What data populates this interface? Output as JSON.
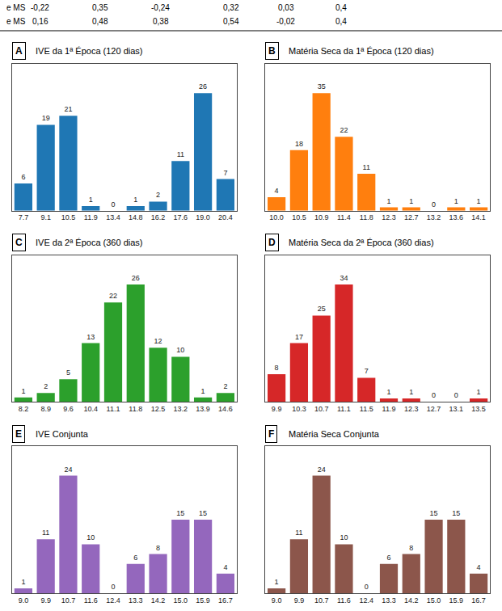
{
  "table": [
    [
      "e MS",
      "-0,22",
      "0,35",
      "-0,24",
      "0,32",
      "0,03",
      "0,4"
    ],
    [
      "e MS",
      "0,16",
      "0,48",
      "0,38",
      "0,54",
      "-0,02",
      "0,4"
    ]
  ],
  "chart_data": [
    {
      "type": "bar",
      "panel_label": "A",
      "title": "IVE da 1ª Época (120 dias)",
      "categories": [
        "7.7",
        "9.1",
        "10.5",
        "11.9",
        "13.4",
        "14.8",
        "16.2",
        "17.6",
        "19.0",
        "20.4"
      ],
      "values": [
        6,
        19,
        21,
        1,
        0,
        1,
        2,
        11,
        26,
        7
      ],
      "ylim": [
        0,
        32.5
      ],
      "tick_labels": "x",
      "data_labels": true,
      "grid": false
    },
    {
      "type": "bar",
      "panel_label": "B",
      "title": "Matéria Seca da 1ª Época (120 dias)",
      "categories": [
        "10.0",
        "10.5",
        "10.9",
        "11.4",
        "11.8",
        "12.3",
        "12.7",
        "13.2",
        "13.6",
        "14.1"
      ],
      "values": [
        4,
        18,
        35,
        22,
        11,
        1,
        1,
        0,
        1,
        1
      ],
      "ylim": [
        0,
        43.75
      ],
      "tick_labels": "x",
      "data_labels": true,
      "grid": false
    },
    {
      "type": "bar",
      "panel_label": "C",
      "title": "IVE da 2ª Época (360 dias)",
      "categories": [
        "8.2",
        "8.9",
        "9.6",
        "10.4",
        "11.1",
        "11.8",
        "12.5",
        "13.2",
        "13.9",
        "14.6"
      ],
      "values": [
        1,
        2,
        5,
        13,
        22,
        26,
        12,
        10,
        1,
        2
      ],
      "ylim": [
        0,
        32.5
      ],
      "tick_labels": "x",
      "data_labels": true,
      "grid": false
    },
    {
      "type": "bar",
      "panel_label": "D",
      "title": "Matéria Seca da 2ª Época (360 dias)",
      "categories": [
        "9.9",
        "10.3",
        "10.7",
        "11.1",
        "11.5",
        "11.9",
        "12.3",
        "12.7",
        "13.1",
        "13.5"
      ],
      "values": [
        8,
        17,
        25,
        34,
        7,
        1,
        1,
        0,
        0,
        1
      ],
      "ylim": [
        0,
        42.5
      ],
      "tick_labels": "x",
      "data_labels": true,
      "grid": false
    },
    {
      "type": "bar",
      "panel_label": "E",
      "title": "IVE Conjunta",
      "categories": [
        "9.0",
        "9.9",
        "10.7",
        "11.6",
        "12.4",
        "13.3",
        "14.2",
        "15.0",
        "15.9",
        "16.7"
      ],
      "values": [
        1,
        11,
        24,
        10,
        0,
        6,
        8,
        15,
        15,
        4
      ],
      "ylim": [
        0,
        30
      ],
      "tick_labels": "x",
      "data_labels": true,
      "grid": false
    },
    {
      "type": "bar",
      "panel_label": "F",
      "title": "Matéria Seca Conjunta",
      "categories": [
        "9.0",
        "9.9",
        "10.7",
        "11.6",
        "12.4",
        "13.3",
        "14.2",
        "15.0",
        "15.9",
        "16.7"
      ],
      "values": [
        1,
        11,
        24,
        10,
        0,
        6,
        8,
        15,
        15,
        4
      ],
      "ylim": [
        0,
        30
      ],
      "tick_labels": "x",
      "data_labels": true,
      "grid": false
    }
  ]
}
